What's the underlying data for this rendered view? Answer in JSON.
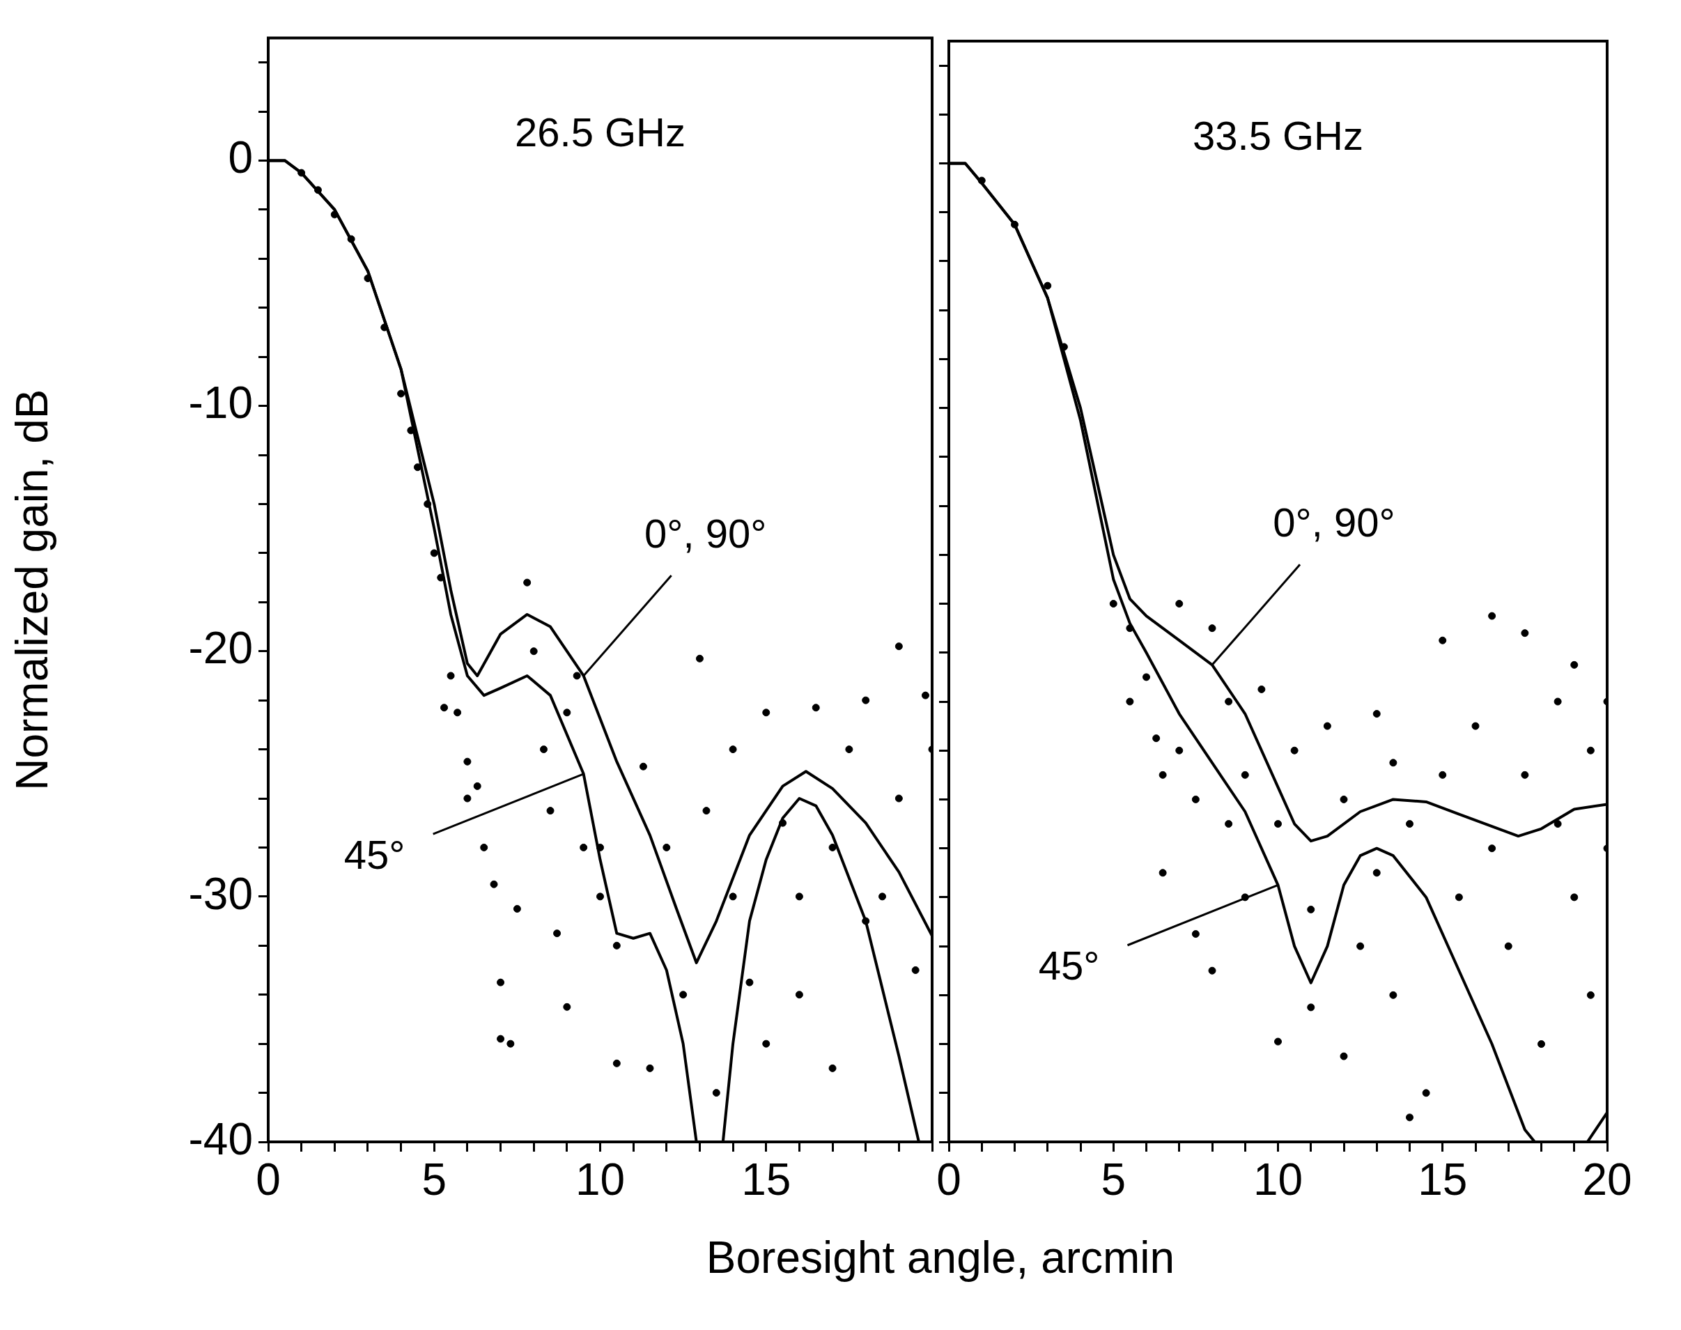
{
  "chart_data": [
    {
      "type": "line",
      "xlabel": "Boresight angle, arcmin",
      "ylabel": "Normalized gain, dB",
      "annotations": [
        "26.5 GHz",
        {
          "text": "0°, 90°",
          "x": 9.5,
          "y": -21
        },
        {
          "text": "45°",
          "x": 9.5,
          "y": -25
        }
      ],
      "xlim": [
        0,
        20
      ],
      "xticks": [
        0,
        {
          "value": 1,
          "label": null
        },
        {
          "value": 2,
          "label": null
        },
        {
          "value": 3,
          "label": null
        },
        {
          "value": 4,
          "label": null
        },
        5,
        {
          "value": 6,
          "label": null
        },
        {
          "value": 7,
          "label": null
        },
        {
          "value": 8,
          "label": null
        },
        {
          "value": 9,
          "label": null
        },
        10,
        {
          "value": 11,
          "label": null
        },
        {
          "value": 12,
          "label": null
        },
        {
          "value": 13,
          "label": null
        },
        {
          "value": 14,
          "label": null
        },
        15,
        {
          "value": 16,
          "label": null
        },
        {
          "value": 17,
          "label": null
        },
        {
          "value": 18,
          "label": null
        },
        {
          "value": 19,
          "label": null
        },
        {
          "value": 20,
          "label": null
        }
      ],
      "ylim": [
        -40,
        5
      ],
      "yticks": [
        -40,
        {
          "value": -38,
          "label": null
        },
        {
          "value": -36,
          "label": null
        },
        {
          "value": -34,
          "label": null
        },
        {
          "value": -32,
          "label": null
        },
        -30,
        {
          "value": -28,
          "label": null
        },
        {
          "value": -26,
          "label": null
        },
        {
          "value": -24,
          "label": null
        },
        {
          "value": -22,
          "label": null
        },
        -20,
        {
          "value": -18,
          "label": null
        },
        {
          "value": -16,
          "label": null
        },
        {
          "value": -14,
          "label": null
        },
        {
          "value": -12,
          "label": null
        },
        -10,
        {
          "value": -8,
          "label": null
        },
        {
          "value": -6,
          "label": null
        },
        {
          "value": -4,
          "label": null
        },
        {
          "value": -2,
          "label": null
        },
        0,
        {
          "value": 2,
          "label": null
        },
        {
          "value": 4,
          "label": null
        }
      ],
      "series": [
        {
          "color": "#000000",
          "x": [
            0,
            0.5,
            1,
            2,
            3,
            4,
            5,
            5.5,
            6,
            6.3,
            7,
            7.8,
            8.5,
            9.5,
            10.5,
            11.5,
            12.3,
            12.9,
            13.5,
            14.5,
            15.5,
            16.2,
            17,
            18,
            19,
            20
          ],
          "values": [
            0,
            0,
            -0.5,
            -2,
            -4.5,
            -8.5,
            -14,
            -17.5,
            -20.5,
            -21,
            -19.3,
            -18.5,
            -19,
            -21,
            -24.5,
            -27.5,
            -30.5,
            -32.7,
            -31,
            -27.5,
            -25.5,
            -24.9,
            -25.6,
            -27,
            -29,
            -31.6
          ]
        },
        {
          "color": "#000000",
          "x": [
            0,
            0.5,
            1,
            2,
            3,
            4,
            5,
            5.5,
            6,
            6.5,
            7,
            7.8,
            8.5,
            9.5,
            10,
            10.5,
            11,
            11.5,
            12,
            12.5,
            12.9,
            13.3,
            13.7,
            14,
            14.5,
            15,
            15.5,
            16,
            16.5,
            17,
            18,
            19,
            19.6
          ],
          "values": [
            0,
            0,
            -0.5,
            -2,
            -4.5,
            -8.5,
            -15,
            -18.5,
            -21,
            -21.8,
            -21.5,
            -21,
            -21.8,
            -25,
            -28.5,
            -31.5,
            -31.7,
            -31.5,
            -33,
            -36,
            -40,
            null,
            -40,
            -36,
            -31,
            -28.5,
            -26.8,
            -26,
            -26.3,
            -27.5,
            -31,
            -36.5,
            -40
          ]
        },
        {
          "type": "scatter",
          "color": "#000000",
          "marker": "circle",
          "x": [
            1,
            1.5,
            2,
            2.5,
            3,
            3.5,
            4,
            4.3,
            4.5,
            4.8,
            5,
            5.2,
            5.5,
            5.3,
            5.7,
            6,
            6,
            6.3,
            6.5,
            6.8,
            7,
            7,
            7.3,
            7.5,
            7.8,
            8,
            8.3,
            8.5,
            8.7,
            9,
            9,
            9.3,
            9.5,
            10,
            10,
            10.5,
            10.5,
            11.3,
            11.5,
            12,
            12.5,
            13,
            13.2,
            13.5,
            14,
            14,
            14.5,
            15,
            15,
            15.5,
            16,
            16,
            16.5,
            17,
            17,
            17.5,
            18,
            18,
            18.5,
            19,
            19,
            19.5,
            20,
            19.8
          ],
          "values": [
            -0.5,
            -1.2,
            -2.2,
            -3.2,
            -4.8,
            -6.8,
            -9.5,
            -11,
            -12.5,
            -14,
            -16,
            -17,
            -21,
            -22.3,
            -22.5,
            -24.5,
            -26,
            -25.5,
            -28,
            -29.5,
            -33.5,
            -35.8,
            -36,
            -30.5,
            -17.2,
            -20,
            -24,
            -26.5,
            -31.5,
            -34.5,
            -22.5,
            -21,
            -28,
            -28,
            -30,
            -32,
            -36.8,
            -24.7,
            -37,
            -28,
            -34,
            -20.3,
            -26.5,
            -38,
            -24,
            -30,
            -33.5,
            -22.5,
            -36,
            -27,
            -30,
            -34,
            -22.3,
            -28,
            -37,
            -24,
            -31,
            -22,
            -30,
            -19.8,
            -26,
            -33,
            -24,
            -21.8
          ]
        }
      ]
    },
    {
      "type": "line",
      "annotations": [
        "33.5 GHz",
        {
          "text": "0°, 90°",
          "x": 8,
          "y": -20.5
        },
        {
          "text": "45°",
          "x": 10,
          "y": -29.5
        }
      ],
      "tick_labels": "x",
      "xlim": [
        0,
        20
      ],
      "xticks": [
        0,
        {
          "value": 1,
          "label": null
        },
        {
          "value": 2,
          "label": null
        },
        {
          "value": 3,
          "label": null
        },
        {
          "value": 4,
          "label": null
        },
        5,
        {
          "value": 6,
          "label": null
        },
        {
          "value": 7,
          "label": null
        },
        {
          "value": 8,
          "label": null
        },
        {
          "value": 9,
          "label": null
        },
        10,
        {
          "value": 11,
          "label": null
        },
        {
          "value": 12,
          "label": null
        },
        {
          "value": 13,
          "label": null
        },
        {
          "value": 14,
          "label": null
        },
        15,
        {
          "value": 16,
          "label": null
        },
        {
          "value": 17,
          "label": null
        },
        {
          "value": 18,
          "label": null
        },
        {
          "value": 19,
          "label": null
        },
        20
      ],
      "ylim": [
        -40,
        5
      ],
      "yticks": [
        -40,
        {
          "value": -38,
          "label": null
        },
        {
          "value": -36,
          "label": null
        },
        {
          "value": -34,
          "label": null
        },
        {
          "value": -32,
          "label": null
        },
        -30,
        {
          "value": -28,
          "label": null
        },
        {
          "value": -26,
          "label": null
        },
        {
          "value": -24,
          "label": null
        },
        {
          "value": -22,
          "label": null
        },
        -20,
        {
          "value": -18,
          "label": null
        },
        {
          "value": -16,
          "label": null
        },
        {
          "value": -14,
          "label": null
        },
        {
          "value": -12,
          "label": null
        },
        -10,
        {
          "value": -8,
          "label": null
        },
        {
          "value": -6,
          "label": null
        },
        {
          "value": -4,
          "label": null
        },
        {
          "value": -2,
          "label": null
        },
        0,
        {
          "value": 2,
          "label": null
        },
        {
          "value": 4,
          "label": null
        }
      ],
      "series": [
        {
          "color": "#000000",
          "x": [
            0,
            0.5,
            1,
            2,
            3,
            4,
            4.5,
            5,
            5.5,
            6,
            7,
            8,
            9,
            10,
            10.5,
            11,
            11.5,
            12.5,
            13.5,
            14.5,
            15.5,
            16.5,
            17.3,
            18,
            19,
            20
          ],
          "values": [
            0,
            0,
            -0.8,
            -2.5,
            -5.5,
            -10,
            -13,
            -16,
            -17.8,
            -18.5,
            -19.5,
            -20.5,
            -22.5,
            -25.5,
            -27,
            -27.7,
            -27.5,
            -26.5,
            -26,
            -26.1,
            -26.6,
            -27.1,
            -27.5,
            -27.2,
            -26.4,
            -26.2
          ]
        },
        {
          "color": "#000000",
          "x": [
            0,
            0.5,
            1,
            2,
            3,
            4,
            5,
            5.5,
            6,
            7,
            8,
            9,
            10,
            10.5,
            11,
            11.5,
            12,
            12.5,
            13,
            13.5,
            14.5,
            15.5,
            16.5,
            17.5,
            17.8,
            18.6,
            19.4,
            20
          ],
          "values": [
            0,
            0,
            -0.8,
            -2.5,
            -5.5,
            -10.5,
            -17,
            -18.8,
            -20,
            -22.5,
            -24.5,
            -26.5,
            -29.5,
            -32,
            -33.5,
            -32,
            -29.5,
            -28.3,
            -28,
            -28.3,
            -30,
            -33,
            -36,
            -39.5,
            -40,
            null,
            -40,
            -38.8
          ]
        },
        {
          "type": "scatter",
          "color": "#000000",
          "marker": "circle",
          "x": [
            1,
            2,
            3,
            3.5,
            4,
            4.5,
            4.8,
            5,
            5.5,
            5.5,
            6,
            6.3,
            6.5,
            6.5,
            7,
            7,
            7.5,
            7.5,
            8,
            8,
            8.5,
            8.5,
            9,
            9,
            9.5,
            10,
            10,
            10.5,
            11,
            11,
            11.5,
            12,
            12,
            12.5,
            13,
            13,
            13.5,
            13.5,
            14,
            14.5,
            15,
            15,
            15.5,
            16,
            16.5,
            16.5,
            17,
            17.5,
            17.5,
            18,
            18.5,
            18.5,
            19,
            19,
            19.5,
            19.5,
            20,
            20,
            14
          ],
          "values": [
            -0.7,
            -2.5,
            -5,
            -7.5,
            null,
            null,
            null,
            -18,
            -19,
            -22,
            -21,
            -23.5,
            -25,
            -29,
            -18,
            -24,
            -26,
            -31.5,
            -19,
            -33,
            -22,
            -27,
            -25,
            -30,
            -21.5,
            -27,
            -35.9,
            -24,
            -30.5,
            -34.5,
            -23,
            -26,
            -36.5,
            -32,
            -22.5,
            -29,
            -24.5,
            -34,
            -27,
            -38,
            -19.5,
            -25,
            -30,
            -23,
            -18.5,
            -28,
            -32,
            -19.2,
            -25,
            -36,
            -27,
            -22,
            -20.5,
            -30,
            -34,
            -24,
            -28,
            -22,
            -39
          ]
        }
      ]
    }
  ]
}
